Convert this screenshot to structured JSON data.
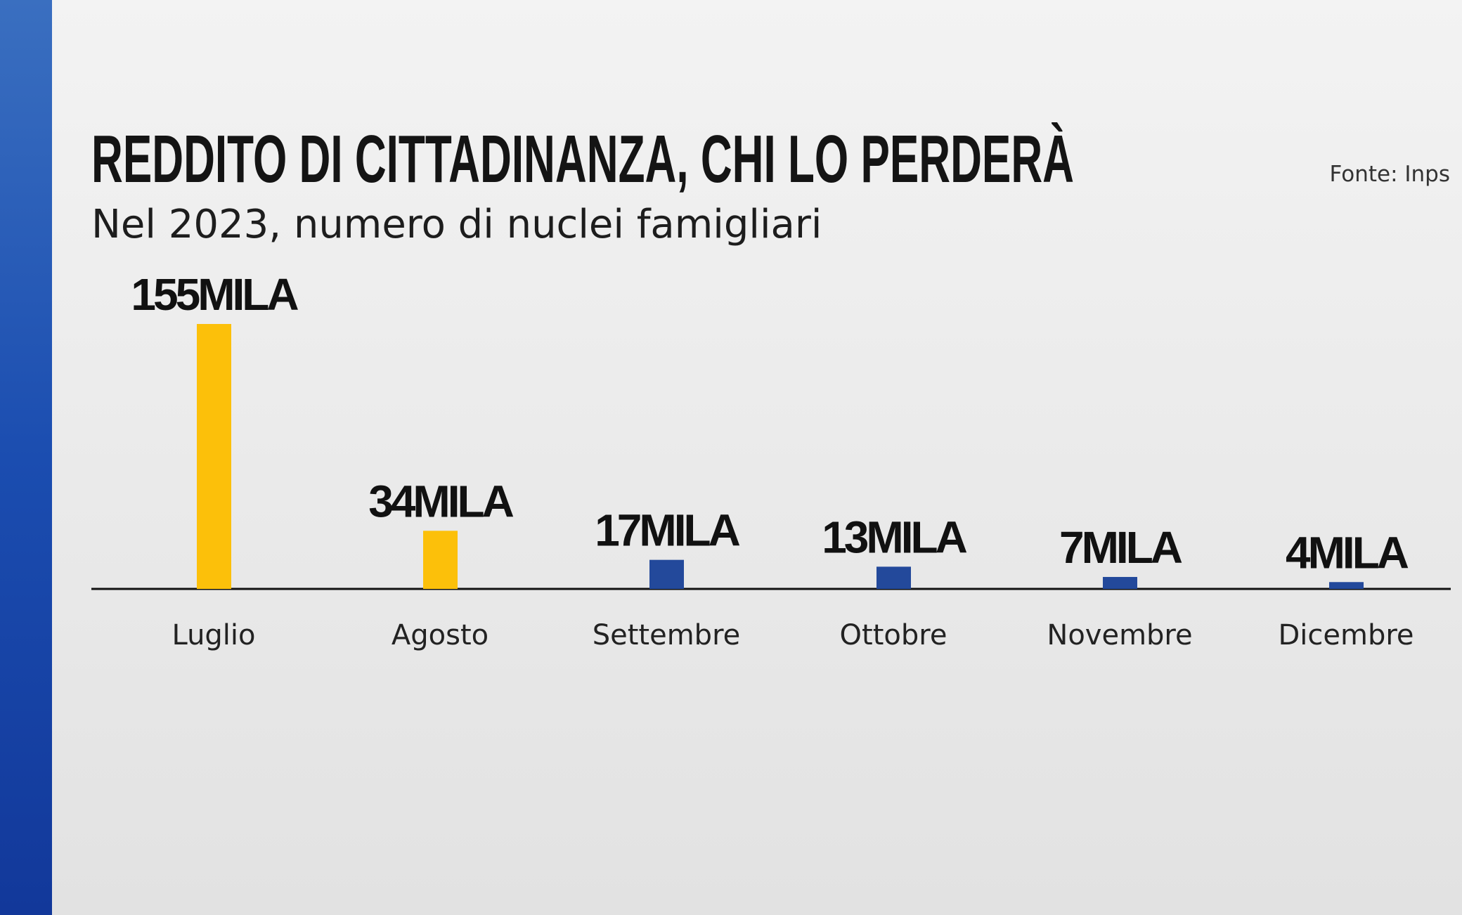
{
  "chart_data": {
    "type": "bar",
    "title": "REDDITO DI CITTADINANZA, CHI LO PERDERÀ",
    "subtitle": "Nel 2023, numero di nuclei famigliari",
    "source": "Fonte: Inps",
    "categories": [
      "Luglio",
      "Agosto",
      "Settembre",
      "Ottobre",
      "Novembre",
      "Dicembre"
    ],
    "values": [
      155,
      34,
      17,
      13,
      7,
      4
    ],
    "value_labels": [
      "155MILA",
      "34MILA",
      "17MILA",
      "13MILA",
      "7MILA",
      "4MILA"
    ],
    "colors": [
      "#fcc00a",
      "#fcc00a",
      "#23499b",
      "#23499b",
      "#23499b",
      "#23499b"
    ]
  }
}
